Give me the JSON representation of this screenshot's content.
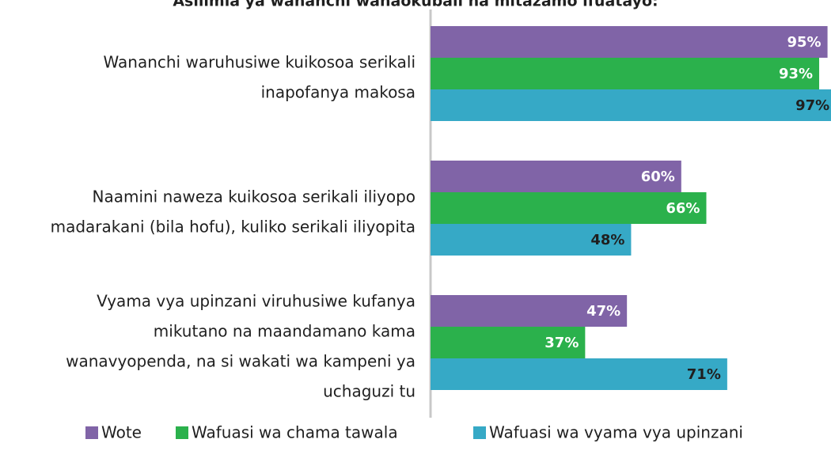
{
  "chart_data": {
    "type": "hbar",
    "title": "Asilimia ya wananchi wanaokubali na mitazamo ifuatayo:",
    "categories": [
      [
        "Wananchi waruhusiwe kuikosoa serikali",
        "inapofanya makosa"
      ],
      [
        "Naamini naweza kuikosoa serikali iliyopo",
        "madarakani (bila hofu), kuliko serikali iliyopita"
      ],
      [
        "Vyama vya upinzani viruhusiwe kufanya",
        "mikutano na maandamano kama",
        "wanavyopenda, na si wakati wa kampeni ya",
        "uchaguzi tu"
      ]
    ],
    "series": [
      {
        "name": "Wote",
        "color": "#8064a7",
        "label_color": "#ffffff",
        "values": [
          95,
          60,
          47
        ],
        "value_labels": [
          "95%",
          "60%",
          "47%"
        ]
      },
      {
        "name": "Wafuasi wa chama tawala",
        "color": "#2bb14c",
        "label_color": "#ffffff",
        "values": [
          93,
          66,
          37
        ],
        "value_labels": [
          "93%",
          "66%",
          "37%"
        ]
      },
      {
        "name": "Wafuasi wa vyama vya upinzani",
        "color": "#36a9c6",
        "label_color": "#1f1f1f",
        "values": [
          97,
          48,
          71
        ],
        "value_labels": [
          "97%",
          "48%",
          "71%"
        ]
      }
    ],
    "xlim": [
      0,
      100
    ]
  }
}
